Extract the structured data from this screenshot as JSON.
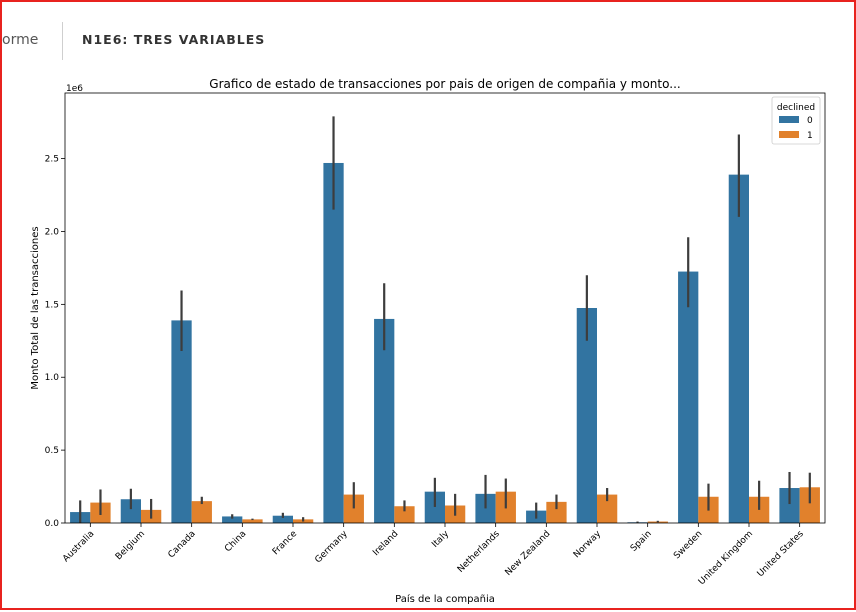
{
  "header": {
    "tab_partial": "orme",
    "title": "N1E6: TRES VARIABLES"
  },
  "chart_data": {
    "type": "bar",
    "title": "Grafico de estado de transacciones por pais de origen de compañia y monto...",
    "xlabel": "País de la compañia",
    "ylabel": "Monto Total de las transacciones",
    "y_scale_label": "1e6",
    "ylim": [
      0,
      2.95
    ],
    "yticks": [
      0.0,
      0.5,
      1.0,
      1.5,
      2.0,
      2.5
    ],
    "ytick_labels": [
      "0.0",
      "0.5",
      "1.0",
      "1.5",
      "2.0",
      "2.5"
    ],
    "categories": [
      "Australia",
      "Belgium",
      "Canada",
      "China",
      "France",
      "Germany",
      "Ireland",
      "Italy",
      "Netherlands",
      "New Zealand",
      "Norway",
      "Spain",
      "Sweden",
      "United Kingdom",
      "United States"
    ],
    "legend": {
      "title": "declined",
      "placement": "top-right"
    },
    "series": [
      {
        "name": "0",
        "color": "#3274a1",
        "values": [
          0.075,
          0.163,
          1.39,
          0.045,
          0.05,
          2.47,
          1.4,
          0.215,
          0.2,
          0.085,
          1.475,
          0.005,
          1.725,
          2.39,
          0.24
        ],
        "err_low": [
          0.0,
          0.095,
          1.18,
          0.03,
          0.035,
          2.15,
          1.185,
          0.11,
          0.1,
          0.03,
          1.25,
          0.0,
          1.48,
          2.1,
          0.13
        ],
        "err_high": [
          0.155,
          0.235,
          1.595,
          0.06,
          0.07,
          2.79,
          1.645,
          0.31,
          0.33,
          0.14,
          1.7,
          0.01,
          1.96,
          2.665,
          0.35
        ]
      },
      {
        "name": "1",
        "color": "#e1812c",
        "values": [
          0.14,
          0.09,
          0.15,
          0.025,
          0.025,
          0.195,
          0.115,
          0.12,
          0.215,
          0.145,
          0.195,
          0.01,
          0.18,
          0.18,
          0.245
        ],
        "err_low": [
          0.055,
          0.03,
          0.13,
          0.02,
          0.01,
          0.1,
          0.08,
          0.05,
          0.1,
          0.095,
          0.15,
          0.005,
          0.085,
          0.09,
          0.135
        ],
        "err_high": [
          0.23,
          0.165,
          0.18,
          0.03,
          0.04,
          0.28,
          0.155,
          0.2,
          0.305,
          0.195,
          0.24,
          0.015,
          0.27,
          0.29,
          0.345
        ]
      }
    ]
  }
}
